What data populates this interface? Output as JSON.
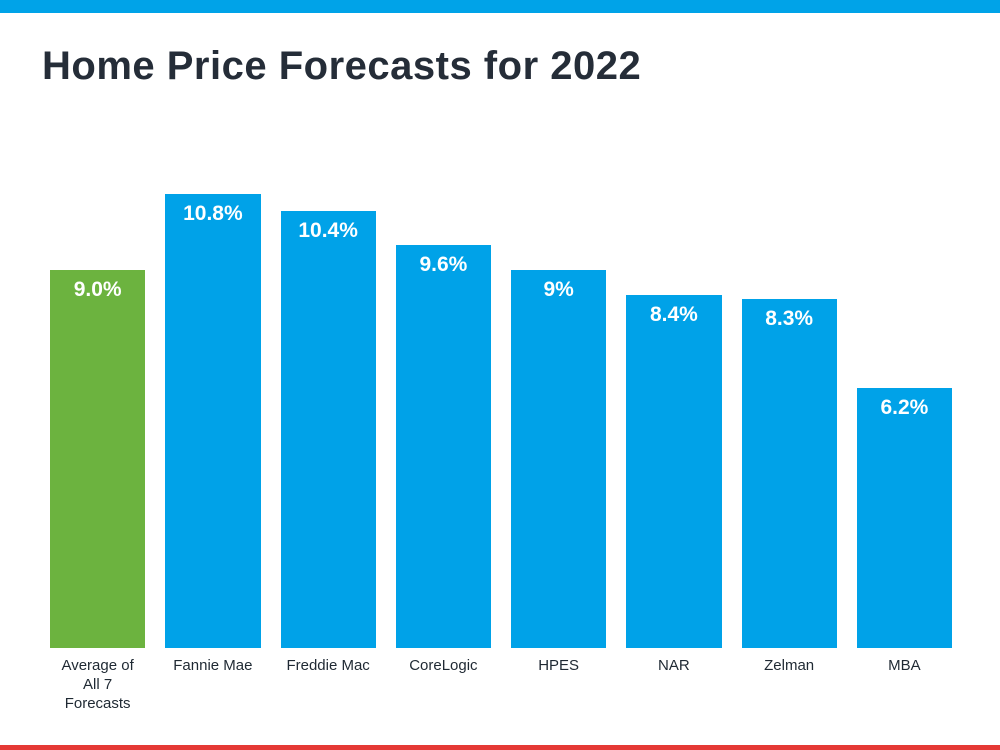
{
  "page": {
    "background": "#ffffff",
    "top_bar_color": "#00a3e8",
    "bottom_bar_color": "#e53935"
  },
  "chart_data": {
    "type": "bar",
    "title": "Home Price Forecasts for 2022",
    "title_color": "#252d38",
    "categories": [
      "Average of\nAll 7 Forecasts",
      "Fannie Mae",
      "Freddie Mac",
      "CoreLogic",
      "HPES",
      "NAR",
      "Zelman",
      "MBA"
    ],
    "values": [
      9.0,
      10.8,
      10.4,
      9.6,
      9.0,
      8.4,
      8.3,
      6.2
    ],
    "value_labels": [
      "9.0%",
      "10.8%",
      "10.4%",
      "9.6%",
      "9%",
      "8.4%",
      "8.3%",
      "6.2%"
    ],
    "bar_colors": [
      "#6cb33f",
      "#00a2e8",
      "#00a2e8",
      "#00a2e8",
      "#00a2e8",
      "#00a2e8",
      "#00a2e8",
      "#00a2e8"
    ],
    "highlight_color": "#6cb33f",
    "series_color": "#00a2e8",
    "value_label_color": "#ffffff",
    "category_label_color": "#1f2933",
    "xlabel": "",
    "ylabel": "",
    "ylim": [
      0,
      11
    ],
    "grid": false,
    "legend": "none"
  }
}
